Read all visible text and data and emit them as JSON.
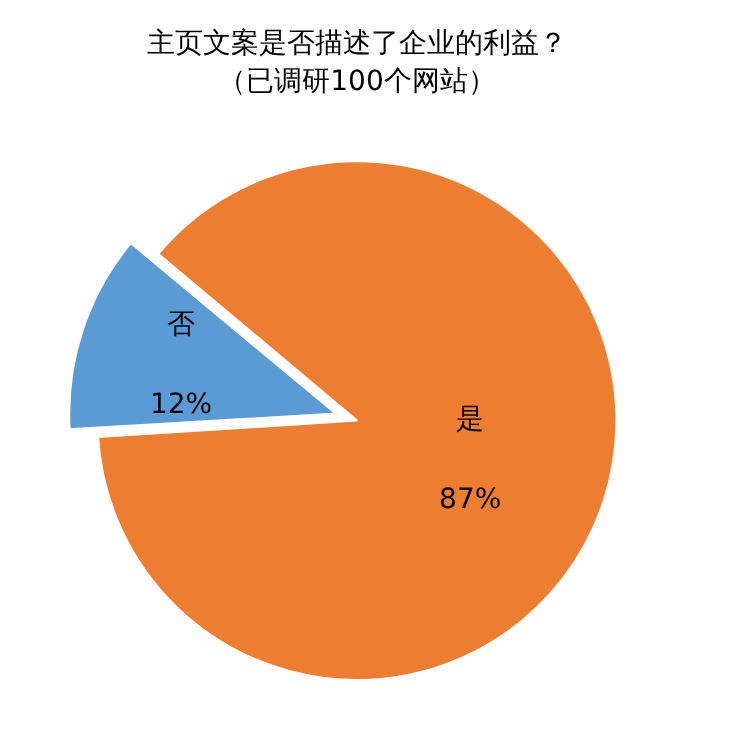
{
  "chart_data": {
    "type": "pie",
    "title": "主页文案是否描述了企业的利益？",
    "subtitle": "（已调研100个网站）",
    "categories": [
      "是",
      "否"
    ],
    "values": [
      87,
      12
    ],
    "value_labels": [
      "87%",
      "12%"
    ],
    "colors": [
      "#ed7d31",
      "#5b9bd5"
    ],
    "legend": false
  }
}
